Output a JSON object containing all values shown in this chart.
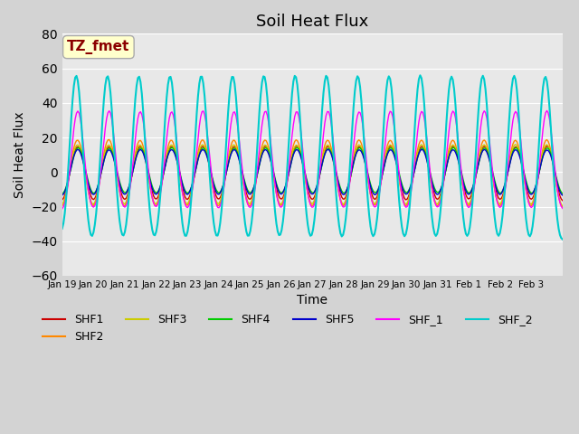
{
  "title": "Soil Heat Flux",
  "xlabel": "Time",
  "ylabel": "Soil Heat Flux",
  "ylim": [
    -60,
    80
  ],
  "yticks": [
    -60,
    -40,
    -20,
    0,
    20,
    40,
    60,
    80
  ],
  "date_labels": [
    "Jan 19",
    "Jan 20",
    "Jan 21",
    "Jan 22",
    "Jan 23",
    "Jan 24",
    "Jan 25",
    "Jan 26",
    "Jan 27",
    "Jan 28",
    "Jan 29",
    "Jan 30",
    "Jan 31",
    "Feb 1",
    "Feb 2",
    "Feb 3"
  ],
  "annotation_text": "TZ_fmet",
  "annotation_color": "#8B0000",
  "annotation_bg": "#FFFFCC",
  "series_colors": {
    "SHF1": "#CC0000",
    "SHF2": "#FF8800",
    "SHF3": "#CCCC00",
    "SHF4": "#00CC00",
    "SHF5": "#0000CC",
    "SHF_1": "#FF00FF",
    "SHF_2": "#00CCCC"
  },
  "fig_bg": "#D3D3D3",
  "plot_bg": "#E8E8E8",
  "title_fontsize": 13,
  "axis_label_fontsize": 10,
  "legend_fontsize": 9
}
